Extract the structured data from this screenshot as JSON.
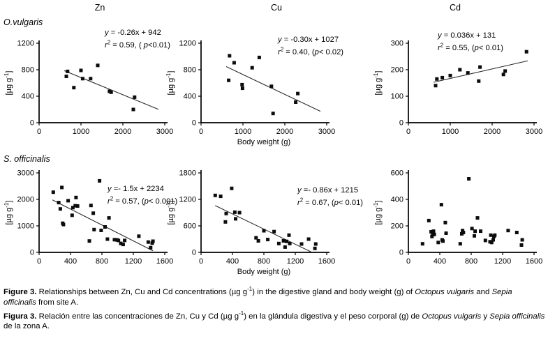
{
  "page": {
    "column_headers": [
      "Zn",
      "Cu",
      "Cd"
    ],
    "species_labels": [
      "O.vulgaris",
      "S. officinalis"
    ],
    "marker": "filled-square",
    "marker_color": "#0c0c0c",
    "background_color": "#ffffff"
  },
  "caption": {
    "lines": [
      [
        {
          "t": "Figure 3.",
          "b": 1
        },
        {
          "t": " Relationships between Zn, Cu and Cd concentrations (µg g"
        },
        {
          "t": "-1",
          "sup": 1
        },
        {
          "t": ") in the digestive gland and body weight (g) of "
        },
        {
          "t": "Octopus vulgaris",
          "i": 1
        },
        {
          "t": " and "
        },
        {
          "t": "Sepia officinalis",
          "i": 1
        },
        {
          "t": " from site A."
        }
      ],
      [
        {
          "t": "Figura 3.",
          "b": 1
        },
        {
          "t": " Relación entre las concentraciones de Zn, Cu y Cd (µg g"
        },
        {
          "t": "-1",
          "sup": 1
        },
        {
          "t": ") en la glándula digestiva y el peso corporal (g) de "
        },
        {
          "t": "Octopus vulgaris",
          "i": 1
        },
        {
          "t": " y "
        },
        {
          "t": "Sepia officinalis",
          "i": 1
        },
        {
          "t": " de la zona A."
        }
      ]
    ]
  },
  "chart_data": [
    {
      "id": "zn-o-vulgaris",
      "type": "scatter",
      "metal": "Zn",
      "species": "O.vulgaris",
      "xlabel": "",
      "ylabel": "[µg g⁻¹]",
      "xlim": [
        0,
        3000
      ],
      "ylim": [
        0,
        1200
      ],
      "xticks": [
        0,
        1000,
        2000,
        3000
      ],
      "yticks": [
        0,
        400,
        800,
        1200
      ],
      "points": [
        [
          650,
          700
        ],
        [
          680,
          775
        ],
        [
          830,
          530
        ],
        [
          1000,
          790
        ],
        [
          1040,
          665
        ],
        [
          1230,
          665
        ],
        [
          1400,
          865
        ],
        [
          1680,
          475
        ],
        [
          1720,
          460
        ],
        [
          2250,
          200
        ],
        [
          2280,
          385
        ]
      ],
      "trendline": {
        "slope": -0.26,
        "intercept": 942,
        "x_start": 600,
        "x_end": 2850,
        "r2": 0.59,
        "p": "p<0.01"
      },
      "annotation": [
        [
          {
            "t": "y",
            "i": 1
          },
          {
            "t": " = -0.26x + 942"
          }
        ],
        [
          {
            "t": "r",
            "i": 1
          },
          {
            "t": "2",
            "sup": 1
          },
          {
            "t": " = 0.59, ( "
          },
          {
            "t": "p",
            "i": 1
          },
          {
            "t": "<0.01)"
          }
        ]
      ]
    },
    {
      "id": "cu-o-vulgaris",
      "type": "scatter",
      "metal": "Cu",
      "species": "O.vulgaris",
      "xlabel": "Body weight (g)",
      "ylabel": "[µg g⁻¹]",
      "xlim": [
        0,
        3000
      ],
      "ylim": [
        0,
        1200
      ],
      "xticks": [
        0,
        1000,
        2000,
        3000
      ],
      "yticks": [
        0,
        400,
        800,
        1200
      ],
      "points": [
        [
          660,
          640
        ],
        [
          680,
          1010
        ],
        [
          790,
          905
        ],
        [
          980,
          575
        ],
        [
          990,
          520
        ],
        [
          1220,
          830
        ],
        [
          1390,
          985
        ],
        [
          1680,
          550
        ],
        [
          1720,
          140
        ],
        [
          2260,
          310
        ],
        [
          2310,
          440
        ]
      ],
      "trendline": {
        "slope": -0.3,
        "intercept": 1027,
        "x_start": 600,
        "x_end": 2850,
        "r2": 0.4,
        "p": "p< 0.02"
      },
      "annotation": [
        [
          {
            "t": "y",
            "i": 1
          },
          {
            "t": " = -0.30x + 1027"
          }
        ],
        [
          {
            "t": "r",
            "i": 1
          },
          {
            "t": "2",
            "sup": 1
          },
          {
            "t": " = 0.40, ("
          },
          {
            "t": "p",
            "i": 1
          },
          {
            "t": "< 0.02)"
          }
        ]
      ]
    },
    {
      "id": "cd-o-vulgaris",
      "type": "scatter",
      "metal": "Cd",
      "species": "O.vulgaris",
      "xlabel": "",
      "ylabel": "[µg g⁻¹]",
      "xlim": [
        0,
        3000
      ],
      "ylim": [
        0,
        300
      ],
      "xticks": [
        0,
        1000,
        2000,
        3000
      ],
      "yticks": [
        0,
        100,
        200,
        300
      ],
      "points": [
        [
          650,
          140
        ],
        [
          680,
          165
        ],
        [
          810,
          170
        ],
        [
          1000,
          178
        ],
        [
          1230,
          200
        ],
        [
          1420,
          188
        ],
        [
          1680,
          157
        ],
        [
          1710,
          210
        ],
        [
          2270,
          182
        ],
        [
          2310,
          195
        ],
        [
          2820,
          268
        ]
      ],
      "trendline": {
        "slope": 0.036,
        "intercept": 131,
        "x_start": 600,
        "x_end": 2850,
        "r2": 0.55,
        "p": "p< 0.01"
      },
      "annotation": [
        [
          {
            "t": "y",
            "i": 1
          },
          {
            "t": " = 0.036x + 131"
          }
        ],
        [
          {
            "t": "r",
            "i": 1
          },
          {
            "t": "2",
            "sup": 1
          },
          {
            "t": " = 0.55, ("
          },
          {
            "t": "p",
            "i": 1
          },
          {
            "t": "< 0.01)"
          }
        ]
      ]
    },
    {
      "id": "zn-s-officinalis",
      "type": "scatter",
      "metal": "Zn",
      "species": "S. officinalis",
      "xlabel": "",
      "ylabel": "[µg g⁻¹]",
      "xlim": [
        0,
        1600
      ],
      "ylim": [
        0,
        3000
      ],
      "xticks": [
        0,
        400,
        800,
        1200,
        1600
      ],
      "yticks": [
        0,
        1000,
        2000,
        3000
      ],
      "points": [
        [
          180,
          2270
        ],
        [
          250,
          1880
        ],
        [
          270,
          1640
        ],
        [
          290,
          2450
        ],
        [
          300,
          1100
        ],
        [
          310,
          1050
        ],
        [
          370,
          1950
        ],
        [
          420,
          1400
        ],
        [
          430,
          1690
        ],
        [
          460,
          1760
        ],
        [
          470,
          2070
        ],
        [
          490,
          1750
        ],
        [
          640,
          430
        ],
        [
          660,
          1770
        ],
        [
          690,
          1480
        ],
        [
          700,
          860
        ],
        [
          770,
          2700
        ],
        [
          790,
          830
        ],
        [
          840,
          960
        ],
        [
          870,
          500
        ],
        [
          890,
          1300
        ],
        [
          960,
          480
        ],
        [
          990,
          470
        ],
        [
          1010,
          450
        ],
        [
          1040,
          340
        ],
        [
          1070,
          300
        ],
        [
          1090,
          450
        ],
        [
          1270,
          610
        ],
        [
          1390,
          390
        ],
        [
          1420,
          180
        ],
        [
          1440,
          350
        ],
        [
          1450,
          420
        ]
      ],
      "trendline": {
        "slope": -1.5,
        "intercept": 2234,
        "x_start": 170,
        "x_end": 1450,
        "r2": 0.57,
        "p": "p< 0.001"
      },
      "annotation": [
        [
          {
            "t": "y",
            "i": 1
          },
          {
            "t": " =- 1.5x + 2234"
          }
        ],
        [
          {
            "t": "r",
            "i": 1
          },
          {
            "t": "2",
            "sup": 1
          },
          {
            "t": " = 0.57, ("
          },
          {
            "t": "p",
            "i": 1
          },
          {
            "t": "< 0.001)"
          }
        ]
      ]
    },
    {
      "id": "cu-s-officinalis",
      "type": "scatter",
      "metal": "Cu",
      "species": "S. officinalis",
      "xlabel": "Body weight (g)",
      "ylabel": "[µg g⁻¹]",
      "xlim": [
        0,
        1600
      ],
      "ylim": [
        0,
        1800
      ],
      "xticks": [
        0,
        400,
        800,
        1200,
        1600
      ],
      "yticks": [
        0,
        600,
        1200,
        1800
      ],
      "points": [
        [
          180,
          1290
        ],
        [
          250,
          1270
        ],
        [
          310,
          690
        ],
        [
          320,
          880
        ],
        [
          390,
          1450
        ],
        [
          430,
          910
        ],
        [
          440,
          760
        ],
        [
          490,
          900
        ],
        [
          700,
          330
        ],
        [
          730,
          260
        ],
        [
          800,
          490
        ],
        [
          850,
          290
        ],
        [
          930,
          470
        ],
        [
          990,
          200
        ],
        [
          1050,
          260
        ],
        [
          1070,
          120
        ],
        [
          1090,
          250
        ],
        [
          1120,
          390
        ],
        [
          1130,
          200
        ],
        [
          1280,
          190
        ],
        [
          1370,
          300
        ],
        [
          1450,
          90
        ],
        [
          1460,
          190
        ]
      ],
      "trendline": {
        "slope": -0.86,
        "intercept": 1215,
        "x_start": 180,
        "x_end": 1400,
        "r2": 0.67,
        "p": "p< 0.01"
      },
      "annotation": [
        [
          {
            "t": "y",
            "i": 1
          },
          {
            "t": " =- 0.86x + 1215"
          }
        ],
        [
          {
            "t": "r",
            "i": 1
          },
          {
            "t": "2",
            "sup": 1
          },
          {
            "t": " = 0.67, ("
          },
          {
            "t": "p",
            "i": 1
          },
          {
            "t": "< 0.01)"
          }
        ]
      ]
    },
    {
      "id": "cd-s-officinalis",
      "type": "scatter",
      "metal": "Cd",
      "species": "S. officinalis",
      "xlabel": "",
      "ylabel": "[µg g⁻¹]",
      "xlim": [
        0,
        1600
      ],
      "ylim": [
        0,
        600
      ],
      "xticks": [
        0,
        400,
        800,
        1200,
        1600
      ],
      "yticks": [
        0,
        200,
        400,
        600
      ],
      "points": [
        [
          180,
          65
        ],
        [
          260,
          240
        ],
        [
          290,
          155
        ],
        [
          300,
          120
        ],
        [
          310,
          145
        ],
        [
          320,
          160
        ],
        [
          330,
          135
        ],
        [
          380,
          75
        ],
        [
          420,
          360
        ],
        [
          430,
          95
        ],
        [
          440,
          85
        ],
        [
          470,
          225
        ],
        [
          480,
          145
        ],
        [
          660,
          65
        ],
        [
          680,
          140
        ],
        [
          690,
          165
        ],
        [
          700,
          150
        ],
        [
          770,
          555
        ],
        [
          810,
          180
        ],
        [
          840,
          125
        ],
        [
          850,
          160
        ],
        [
          880,
          260
        ],
        [
          920,
          160
        ],
        [
          980,
          90
        ],
        [
          1040,
          80
        ],
        [
          1050,
          130
        ],
        [
          1060,
          75
        ],
        [
          1080,
          95
        ],
        [
          1090,
          120
        ],
        [
          1100,
          130
        ],
        [
          1270,
          165
        ],
        [
          1380,
          150
        ],
        [
          1440,
          55
        ],
        [
          1450,
          95
        ]
      ],
      "trendline": null,
      "annotation": null
    }
  ]
}
